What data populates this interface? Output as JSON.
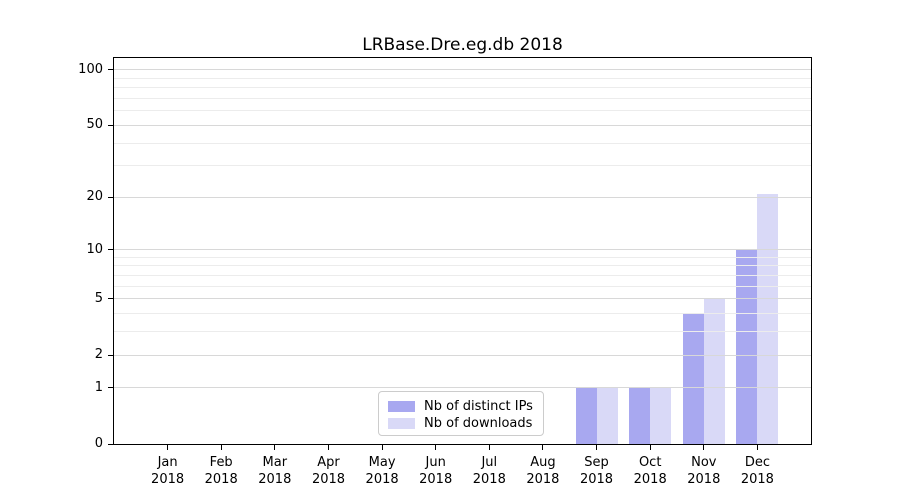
{
  "chart_data": {
    "type": "bar",
    "title": "LRBase.Dre.eg.db 2018",
    "x_categories": [
      {
        "month": "Jan",
        "year": "2018"
      },
      {
        "month": "Feb",
        "year": "2018"
      },
      {
        "month": "Mar",
        "year": "2018"
      },
      {
        "month": "Apr",
        "year": "2018"
      },
      {
        "month": "May",
        "year": "2018"
      },
      {
        "month": "Jun",
        "year": "2018"
      },
      {
        "month": "Jul",
        "year": "2018"
      },
      {
        "month": "Aug",
        "year": "2018"
      },
      {
        "month": "Sep",
        "year": "2018"
      },
      {
        "month": "Oct",
        "year": "2018"
      },
      {
        "month": "Nov",
        "year": "2018"
      },
      {
        "month": "Dec",
        "year": "2018"
      }
    ],
    "series": [
      {
        "name": "Nb of distinct IPs",
        "color": "#a8a8f0",
        "values": [
          0,
          0,
          0,
          0,
          0,
          0,
          0,
          0,
          1,
          1,
          4,
          10
        ]
      },
      {
        "name": "Nb of downloads",
        "color": "#d9d9f7",
        "values": [
          0,
          0,
          0,
          0,
          0,
          0,
          0,
          0,
          1,
          1,
          5,
          21
        ]
      }
    ],
    "yscale": "log1p",
    "ylim": [
      0,
      116
    ],
    "yticks_major": [
      0,
      1,
      2,
      5,
      10,
      20,
      50,
      100
    ],
    "yticks_minor": [
      3,
      4,
      6,
      7,
      8,
      9,
      30,
      40,
      60,
      70,
      80,
      90
    ],
    "grid": "horizontal",
    "legend_position": "lower-center-left",
    "colors": {
      "grid_major": "#d8d8d8",
      "grid_minor": "#ececec",
      "spine": "#000000"
    }
  }
}
